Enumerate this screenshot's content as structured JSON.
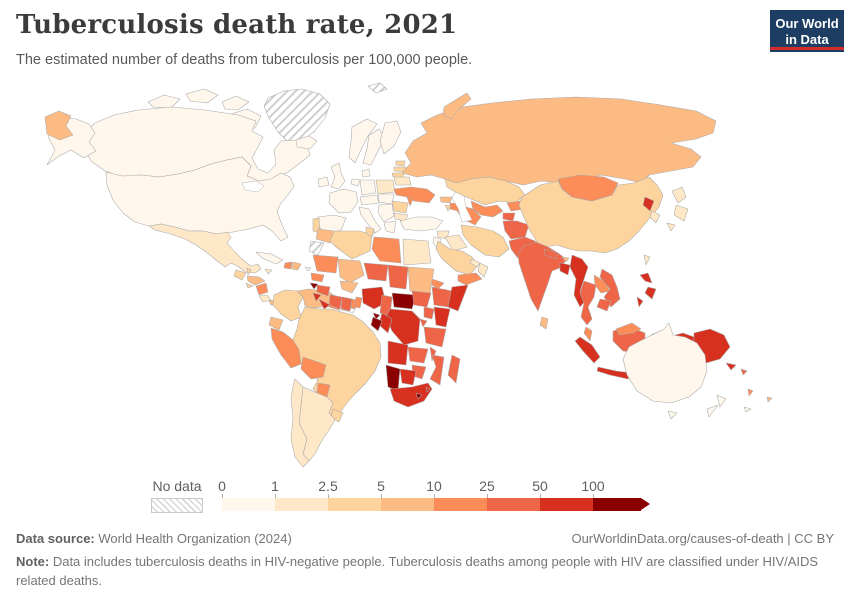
{
  "header": {
    "title": "Tuberculosis death rate, 2021",
    "subtitle": "The estimated number of deaths from tuberculosis per 100,000 people."
  },
  "logo": {
    "line1": "Our World",
    "line2": "in Data",
    "bg": "#1d3d63",
    "accent": "#d42b2b"
  },
  "legend": {
    "no_data_label": "No data",
    "bins": [
      {
        "tick": "0",
        "range": "0-1",
        "color": "#fff7ec"
      },
      {
        "tick": "1",
        "range": "1-2.5",
        "color": "#fee8c8"
      },
      {
        "tick": "2.5",
        "range": "2.5-5",
        "color": "#fdd49e"
      },
      {
        "tick": "5",
        "range": "5-10",
        "color": "#fdbb84"
      },
      {
        "tick": "10",
        "range": "10-25",
        "color": "#fc8d59"
      },
      {
        "tick": "25",
        "range": "25-50",
        "color": "#ef6548"
      },
      {
        "tick": "50",
        "range": "50-100",
        "color": "#d7301f"
      },
      {
        "tick": "100",
        "range": "100+",
        "color": "#8b0000"
      }
    ]
  },
  "footer": {
    "source_label": "Data source:",
    "source_text": " World Health Organization (2024)",
    "link_text": "OurWorldinData.org/causes-of-death | CC BY",
    "note_label": "Note:",
    "note_text": " Data includes tuberculosis deaths in HIV-negative people. Tuberculosis deaths among people with HIV are classified under HIV/AIDS related deaths."
  },
  "chart_data": {
    "type": "choropleth-map",
    "title": "Tuberculosis death rate, 2021",
    "unit": "deaths per 100,000 people",
    "year": 2021,
    "thresholds": [
      0,
      1,
      2.5,
      5,
      10,
      25,
      50,
      100
    ],
    "bin_colors": {
      "0-1": "#fff7ec",
      "1-2.5": "#fee8c8",
      "2.5-5": "#fdd49e",
      "5-10": "#fdbb84",
      "10-25": "#fc8d59",
      "25-50": "#ef6548",
      "50-100": "#d7301f",
      "100+": "#8b0000",
      "no-data": "pattern-hatch"
    },
    "regions": {
      "greenland": "no-data",
      "svalbard": "no-data",
      "western-sahara": "no-data",
      "french-guiana": "no-data",
      "canada": "0-1",
      "canada-arctic-1": "0-1",
      "canada-arctic-2": "0-1",
      "canada-arctic-3": "0-1",
      "canada-baffin": "0-1",
      "alaska": "0-1",
      "usa": "0-1",
      "chukotka": "5-10",
      "novaya-zemlya": "5-10",
      "russia": "5-10",
      "iceland": "0-1",
      "ireland": "0-1",
      "uk": "0-1",
      "norway": "0-1",
      "sweden": "0-1",
      "finland": "0-1",
      "denmark": "0-1",
      "france": "0-1",
      "spain": "0-1",
      "germany": "0-1",
      "benelux": "0-1",
      "switzerland-austria": "0-1",
      "czech-hungary": "0-1",
      "italy": "0-1",
      "sicily": "0-1",
      "balkans": "0-1",
      "greece": "0-1",
      "turkey": "0-1",
      "levant": "0-1",
      "portugal": "2.5-5",
      "poland": "1-2.5",
      "belarus": "1-2.5",
      "bulgaria": "1-2.5",
      "estonia": "2.5-5",
      "latvia": "2.5-5",
      "lithuania": "2.5-5",
      "romania": "2.5-5",
      "moldova": "10-25",
      "ukraine": "10-25",
      "mexico": "1-2.5",
      "cuba": "0-1",
      "jamaica": "1-2.5",
      "haiti": "10-25",
      "dominican-republic": "5-10",
      "puerto-rico": "0-1",
      "guatemala": "2.5-5",
      "belize": "2.5-5",
      "el-salvador": "2.5-5",
      "honduras": "5-10",
      "nicaragua": "10-25",
      "costa-rica": "1-2.5",
      "panama": "5-10",
      "colombia": "2.5-5",
      "venezuela": "5-10",
      "guyana": "10-25",
      "suriname": "0-1",
      "ecuador": "5-10",
      "peru": "10-25",
      "brazil": "2.5-5",
      "bolivia": "10-25",
      "paraguay": "10-25",
      "uruguay": "2.5-5",
      "argentina": "1-2.5",
      "chile": "1-2.5",
      "kazakhstan": "2.5-5",
      "uzbekistan": "10-25",
      "turkmenistan": "10-25",
      "kyrgyzstan": "10-25",
      "tajikistan": "25-50",
      "georgia": "5-10",
      "azerbaijan": "10-25",
      "armenia": "2.5-5",
      "syria": "1-2.5",
      "iraq": "1-2.5",
      "iran": "2.5-5",
      "saudi-arabia": "2.5-5",
      "yemen": "10-25",
      "oman": "1-2.5",
      "uae": "1-2.5",
      "afghanistan": "25-50",
      "pakistan": "25-50",
      "india": "25-50",
      "nepal": "25-50",
      "bhutan": "5-10",
      "bangladesh": "50-100",
      "sri-lanka": "5-10",
      "myanmar": "50-100",
      "thailand": "25-50",
      "laos": "10-25",
      "vietnam": "25-50",
      "cambodia": "25-50",
      "malaysia": "10-25",
      "malaysia-borneo": "10-25",
      "china": "2.5-5",
      "mongolia": "10-25",
      "north-korea": "50-100",
      "south-korea": "1-2.5",
      "japan-hokkaido": "1-2.5",
      "japan-honshu": "1-2.5",
      "japan-kyushu": "1-2.5",
      "taiwan": "1-2.5",
      "philippines-luzon": "50-100",
      "philippines-visayas": "50-100",
      "philippines-palawan": "50-100",
      "sumatra": "50-100",
      "java": "50-100",
      "kalimantan": "25-50",
      "sulawesi": "50-100",
      "lesser-sunda": "50-100",
      "timor-leste": "100+",
      "maluku": "25-50",
      "papua-indonesia": "50-100",
      "papua-new-guinea": "50-100",
      "new-britain": "50-100",
      "solomon-islands": "25-50",
      "vanuatu": "10-25",
      "fiji": "5-10",
      "new-caledonia": "0-1",
      "morocco": "5-10",
      "algeria": "2.5-5",
      "tunisia": "2.5-5",
      "libya": "10-25",
      "egypt": "1-2.5",
      "mauritania": "10-25",
      "mali": "5-10",
      "niger": "25-50",
      "chad": "25-50",
      "sudan": "5-10",
      "eritrea": "10-25",
      "djibouti": "25-50",
      "senegal": "10-25",
      "guinea-bissau": "100+",
      "guinea": "25-50",
      "sierra-leone": "50-100",
      "liberia": "50-100",
      "ivory-coast": "25-50",
      "ghana": "25-50",
      "togo": "10-25",
      "benin": "10-25",
      "burkina-faso": "5-10",
      "nigeria": "50-100",
      "cameroon": "25-50",
      "central-african-republic": "100+",
      "south-sudan": "25-50",
      "ethiopia": "25-50",
      "somalia": "50-100",
      "kenya": "50-100",
      "uganda": "25-50",
      "rwanda-burundi": "25-50",
      "drc": "50-100",
      "congo": "50-100",
      "gabon": "100+",
      "equatorial-guinea": "100+",
      "tanzania": "25-50",
      "angola": "50-100",
      "zambia": "25-50",
      "malawi": "25-50",
      "mozambique": "25-50",
      "zimbabwe": "25-50",
      "botswana": "50-100",
      "namibia": "100+",
      "south-africa": "50-100",
      "lesotho": "100+",
      "eswatini": "50-100",
      "madagascar": "25-50",
      "australia": "0-1",
      "tasmania": "0-1",
      "new-zealand-north": "0-1",
      "new-zealand-south": "0-1"
    }
  }
}
